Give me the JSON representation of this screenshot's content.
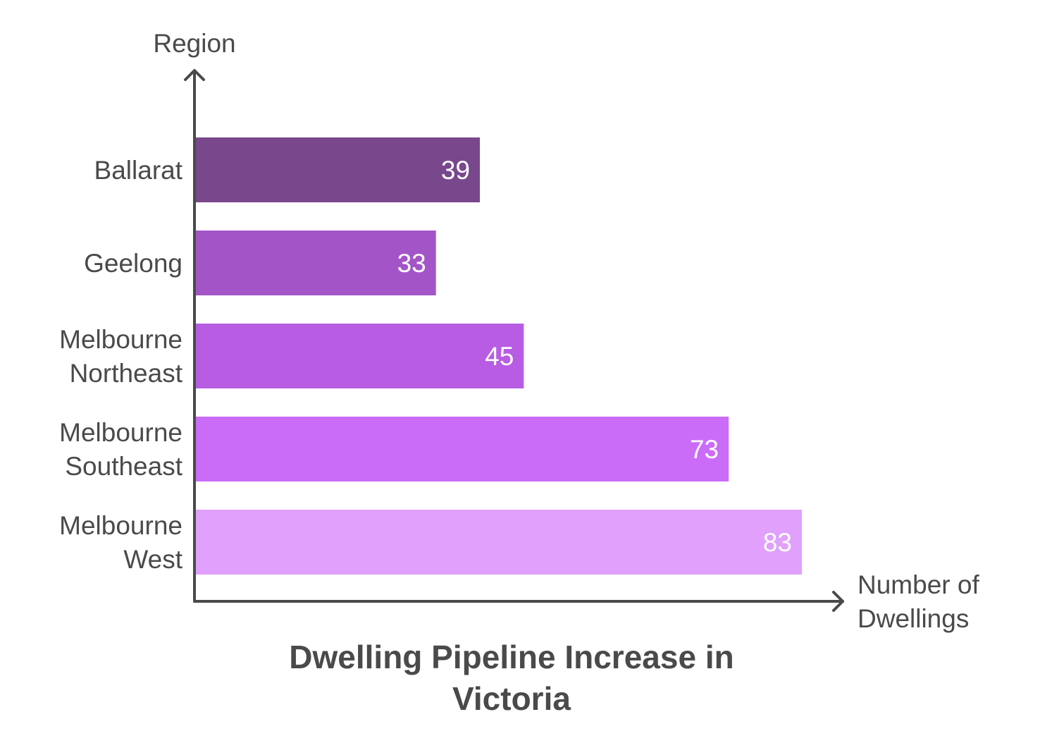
{
  "chart_data": {
    "type": "bar",
    "orientation": "horizontal",
    "title": "Dwelling Pipeline Increase in Victoria",
    "xlabel": "Number of Dwellings",
    "ylabel": "Region",
    "categories": [
      "Ballarat",
      "Geelong",
      "Melbourne Northeast",
      "Melbourne Southeast",
      "Melbourne West"
    ],
    "values": [
      39,
      33,
      45,
      73,
      83
    ],
    "colors": [
      "#79478c",
      "#a355c8",
      "#b85ce3",
      "#cb6cf8",
      "#e0a0fb"
    ],
    "xlim": [
      0,
      83
    ],
    "grid": false,
    "legend": "none",
    "data_labels": "inside-end"
  }
}
